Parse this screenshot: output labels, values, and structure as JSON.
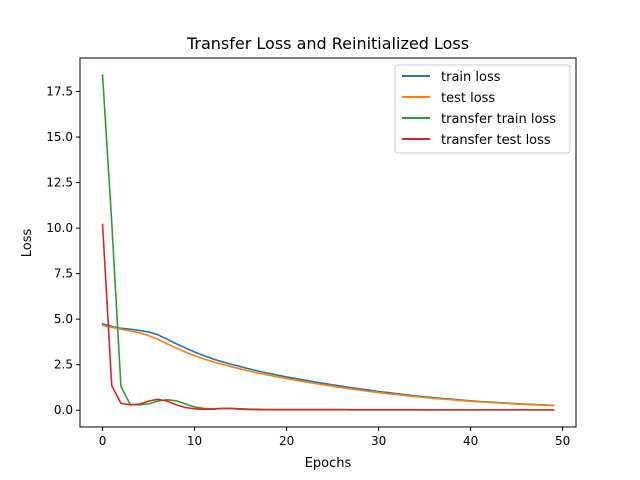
{
  "chart_data": {
    "type": "line",
    "title": "Transfer Loss and Reinitialized Loss",
    "xlabel": "Epochs",
    "ylabel": "Loss",
    "xlim": [
      -2.45,
      51.45
    ],
    "ylim": [
      -0.92,
      19.34
    ],
    "xticks": [
      0,
      10,
      20,
      30,
      40,
      50
    ],
    "xtick_labels": [
      "0",
      "10",
      "20",
      "30",
      "40",
      "50"
    ],
    "yticks": [
      0.0,
      2.5,
      5.0,
      7.5,
      10.0,
      12.5,
      15.0,
      17.5
    ],
    "ytick_labels": [
      "0.0",
      "2.5",
      "5.0",
      "7.5",
      "10.0",
      "12.5",
      "15.0",
      "17.5"
    ],
    "grid": false,
    "legend_position": "top-right",
    "series": [
      {
        "name": "train loss",
        "color": "#1f77b4",
        "x": [
          0,
          1,
          2,
          3,
          4,
          5,
          6,
          7,
          8,
          9,
          10,
          11,
          12,
          13,
          14,
          15,
          16,
          17,
          18,
          19,
          20,
          21,
          22,
          23,
          24,
          25,
          26,
          27,
          28,
          29,
          30,
          31,
          32,
          33,
          34,
          35,
          36,
          37,
          38,
          39,
          40,
          41,
          42,
          43,
          44,
          45,
          46,
          47,
          48,
          49
        ],
        "y": [
          4.75,
          4.6,
          4.5,
          4.45,
          4.38,
          4.3,
          4.15,
          3.9,
          3.65,
          3.42,
          3.2,
          3.0,
          2.82,
          2.66,
          2.52,
          2.39,
          2.26,
          2.14,
          2.03,
          1.93,
          1.83,
          1.74,
          1.65,
          1.56,
          1.48,
          1.4,
          1.32,
          1.24,
          1.17,
          1.1,
          1.03,
          0.97,
          0.91,
          0.85,
          0.79,
          0.74,
          0.69,
          0.64,
          0.6,
          0.56,
          0.52,
          0.48,
          0.45,
          0.42,
          0.39,
          0.36,
          0.33,
          0.31,
          0.29,
          0.27
        ]
      },
      {
        "name": "test loss",
        "color": "#ff7f0e",
        "x": [
          0,
          1,
          2,
          3,
          4,
          5,
          6,
          7,
          8,
          9,
          10,
          11,
          12,
          13,
          14,
          15,
          16,
          17,
          18,
          19,
          20,
          21,
          22,
          23,
          24,
          25,
          26,
          27,
          28,
          29,
          30,
          31,
          32,
          33,
          34,
          35,
          36,
          37,
          38,
          39,
          40,
          41,
          42,
          43,
          44,
          45,
          46,
          47,
          48,
          49
        ],
        "y": [
          4.65,
          4.55,
          4.45,
          4.35,
          4.25,
          4.1,
          3.9,
          3.65,
          3.42,
          3.2,
          3.0,
          2.82,
          2.66,
          2.52,
          2.39,
          2.26,
          2.14,
          2.03,
          1.93,
          1.83,
          1.74,
          1.65,
          1.56,
          1.48,
          1.4,
          1.32,
          1.24,
          1.17,
          1.1,
          1.03,
          0.97,
          0.91,
          0.86,
          0.8,
          0.75,
          0.7,
          0.65,
          0.61,
          0.57,
          0.53,
          0.49,
          0.46,
          0.43,
          0.4,
          0.37,
          0.34,
          0.32,
          0.3,
          0.28,
          0.26
        ]
      },
      {
        "name": "transfer train loss",
        "color": "#2ca02c",
        "x": [
          0,
          1,
          2,
          3,
          4,
          5,
          6,
          7,
          8,
          9,
          10,
          11,
          12,
          13,
          14,
          15,
          16,
          17,
          18,
          19,
          20,
          21,
          22,
          23,
          24,
          25,
          26,
          27,
          28,
          29,
          30,
          31,
          32,
          33,
          34,
          35,
          36,
          37,
          38,
          39,
          40,
          41,
          42,
          43,
          44,
          45,
          46,
          47,
          48,
          49
        ],
        "y": [
          18.4,
          10.3,
          1.3,
          0.32,
          0.3,
          0.35,
          0.5,
          0.58,
          0.52,
          0.35,
          0.18,
          0.1,
          0.08,
          0.1,
          0.1,
          0.08,
          0.06,
          0.05,
          0.04,
          0.04,
          0.04,
          0.04,
          0.04,
          0.04,
          0.04,
          0.04,
          0.04,
          0.03,
          0.03,
          0.03,
          0.03,
          0.03,
          0.03,
          0.03,
          0.03,
          0.02,
          0.02,
          0.02,
          0.02,
          0.02,
          0.02,
          0.02,
          0.02,
          0.02,
          0.02,
          0.02,
          0.02,
          0.02,
          0.02,
          0.02
        ]
      },
      {
        "name": "transfer test loss",
        "color": "#d62728",
        "x": [
          0,
          1,
          2,
          3,
          4,
          5,
          6,
          7,
          8,
          9,
          10,
          11,
          12,
          13,
          14,
          15,
          16,
          17,
          18,
          19,
          20,
          21,
          22,
          23,
          24,
          25,
          26,
          27,
          28,
          29,
          30,
          31,
          32,
          33,
          34,
          35,
          36,
          37,
          38,
          39,
          40,
          41,
          42,
          43,
          44,
          45,
          46,
          47,
          48,
          49
        ],
        "y": [
          10.2,
          1.35,
          0.38,
          0.3,
          0.33,
          0.5,
          0.6,
          0.5,
          0.3,
          0.15,
          0.08,
          0.05,
          0.06,
          0.1,
          0.1,
          0.06,
          0.04,
          0.03,
          0.03,
          0.03,
          0.03,
          0.03,
          0.03,
          0.03,
          0.03,
          0.03,
          0.03,
          0.02,
          0.02,
          0.02,
          0.02,
          0.02,
          0.02,
          0.02,
          0.02,
          0.02,
          0.02,
          0.02,
          0.02,
          0.02,
          0.02,
          0.02,
          0.02,
          0.02,
          0.02,
          0.02,
          0.02,
          0.02,
          0.02,
          0.02
        ]
      }
    ]
  }
}
